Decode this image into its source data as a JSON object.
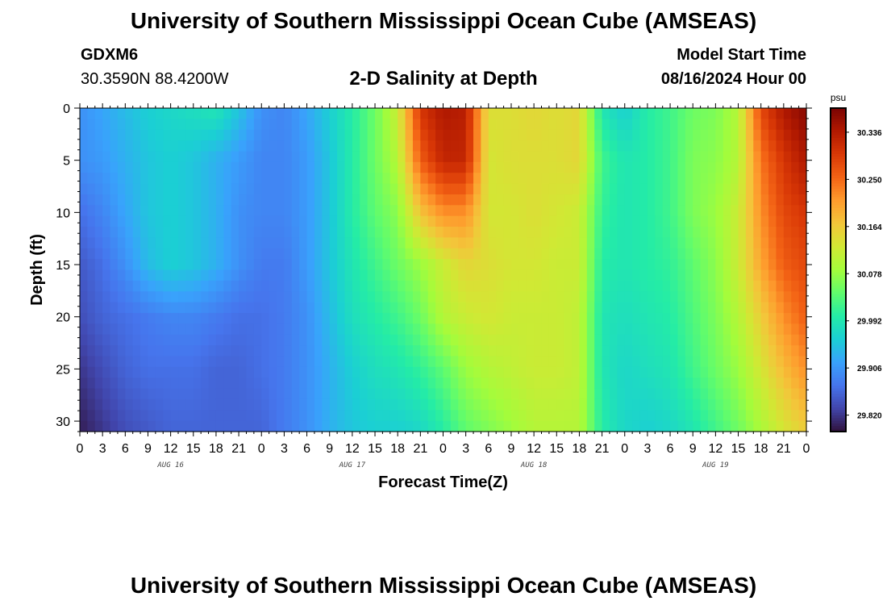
{
  "header": {
    "title": "University of Southern Mississippi Ocean Cube (AMSEAS)",
    "station_id": "GDXM6",
    "coordinates": "30.3590N  88.4200W",
    "subtitle": "2-D Salinity at Depth",
    "model_start_label": "Model Start Time",
    "model_start_value": "08/16/2024 Hour 00"
  },
  "footer": {
    "title": "University of Southern Mississippi Ocean Cube (AMSEAS)"
  },
  "chart_data": {
    "type": "heatmap",
    "title": "2-D Salinity at Depth",
    "xlabel": "Forecast Time(Z)",
    "ylabel": "Depth (ft)",
    "x_unit": "hours since 08/16/2024 Hour 00",
    "x_range": [
      0,
      96
    ],
    "y_range": [
      0,
      31
    ],
    "y_inverted": true,
    "x_tick_labels": [
      "0",
      "3",
      "6",
      "9",
      "12",
      "15",
      "18",
      "21",
      "0",
      "3",
      "6",
      "9",
      "12",
      "15",
      "18",
      "21",
      "0",
      "3",
      "6",
      "9",
      "12",
      "15",
      "18",
      "21",
      "0",
      "3",
      "6",
      "9",
      "12",
      "15",
      "18",
      "21",
      "0"
    ],
    "x_date_labels": [
      "AUG 16",
      "AUG 17",
      "AUG 18",
      "AUG 19"
    ],
    "y_tick_labels": [
      "0",
      "5",
      "10",
      "15",
      "20",
      "25",
      "30"
    ],
    "colorbar": {
      "unit": "psu",
      "min": 29.79,
      "max": 30.38,
      "tick_labels": [
        "30.336",
        "30.250",
        "30.164",
        "30.078",
        "29.992",
        "29.906",
        "29.820"
      ],
      "colors": [
        "#30123b",
        "#4145ab",
        "#4675ed",
        "#39a2fc",
        "#1bcfd4",
        "#24eca6",
        "#61fc6c",
        "#a4fc3b",
        "#d1e834",
        "#f3c63a",
        "#fe9b2d",
        "#f36315",
        "#d93806",
        "#b11901",
        "#7a0403"
      ]
    },
    "depths": [
      0,
      5,
      10,
      15,
      20,
      25,
      31
    ],
    "times": [
      0,
      3,
      6,
      9,
      12,
      15,
      18,
      21,
      24,
      27,
      30,
      33,
      36,
      39,
      42,
      45,
      48,
      51,
      54,
      57,
      60,
      63,
      66,
      69,
      72,
      75,
      78,
      81,
      84,
      87,
      90,
      93,
      96
    ],
    "values": [
      [
        29.9,
        29.92,
        29.94,
        29.96,
        29.97,
        29.98,
        29.99,
        29.95,
        29.9,
        29.89,
        29.92,
        29.96,
        30.0,
        30.05,
        30.12,
        30.3,
        30.34,
        30.33,
        30.14,
        30.14,
        30.15,
        30.14,
        30.15,
        29.99,
        29.96,
        30.0,
        30.02,
        30.05,
        30.06,
        30.1,
        30.28,
        30.34,
        30.37
      ],
      [
        29.9,
        29.91,
        29.93,
        29.95,
        29.96,
        29.95,
        29.93,
        29.91,
        29.89,
        29.89,
        29.91,
        29.95,
        30.0,
        30.05,
        30.1,
        30.26,
        30.32,
        30.32,
        30.13,
        30.14,
        30.14,
        30.14,
        30.15,
        30.02,
        29.99,
        30.0,
        30.02,
        30.06,
        30.07,
        30.1,
        30.24,
        30.3,
        30.34
      ],
      [
        29.87,
        29.89,
        29.92,
        29.95,
        29.96,
        29.95,
        29.93,
        29.9,
        29.89,
        29.89,
        29.91,
        29.95,
        30.0,
        30.04,
        30.07,
        30.17,
        30.22,
        30.22,
        30.13,
        30.13,
        30.14,
        30.13,
        30.12,
        30.01,
        29.99,
        30.0,
        30.02,
        30.06,
        30.08,
        30.12,
        30.22,
        30.28,
        30.3
      ],
      [
        29.85,
        29.87,
        29.9,
        29.94,
        29.96,
        29.95,
        29.93,
        29.9,
        29.88,
        29.88,
        29.91,
        29.95,
        29.99,
        30.02,
        30.05,
        30.08,
        30.12,
        30.15,
        30.14,
        30.13,
        30.13,
        30.12,
        30.12,
        30.0,
        29.99,
        30.0,
        30.01,
        30.04,
        30.07,
        30.12,
        30.2,
        30.26,
        30.28
      ],
      [
        29.84,
        29.86,
        29.87,
        29.88,
        29.89,
        29.89,
        29.88,
        29.87,
        29.87,
        29.88,
        29.9,
        29.94,
        29.98,
        30.0,
        30.02,
        30.05,
        30.1,
        30.12,
        30.13,
        30.12,
        30.12,
        30.12,
        30.11,
        29.99,
        29.98,
        29.99,
        30.0,
        30.03,
        30.06,
        30.1,
        30.16,
        30.22,
        30.26
      ],
      [
        29.82,
        29.84,
        29.86,
        29.87,
        29.87,
        29.87,
        29.86,
        29.86,
        29.87,
        29.88,
        29.9,
        29.93,
        29.96,
        29.98,
        29.99,
        30.01,
        30.04,
        30.08,
        30.1,
        30.11,
        30.12,
        30.12,
        30.11,
        29.99,
        29.97,
        29.98,
        29.99,
        30.02,
        30.05,
        30.08,
        30.13,
        30.18,
        30.22
      ],
      [
        29.8,
        29.82,
        29.84,
        29.85,
        29.86,
        29.86,
        29.86,
        29.86,
        29.86,
        29.88,
        29.9,
        29.93,
        29.95,
        29.96,
        29.96,
        29.97,
        30.0,
        30.04,
        30.06,
        30.08,
        30.1,
        30.1,
        30.1,
        30.0,
        29.97,
        29.96,
        29.97,
        29.99,
        30.02,
        30.05,
        30.09,
        30.13,
        30.16
      ]
    ]
  }
}
